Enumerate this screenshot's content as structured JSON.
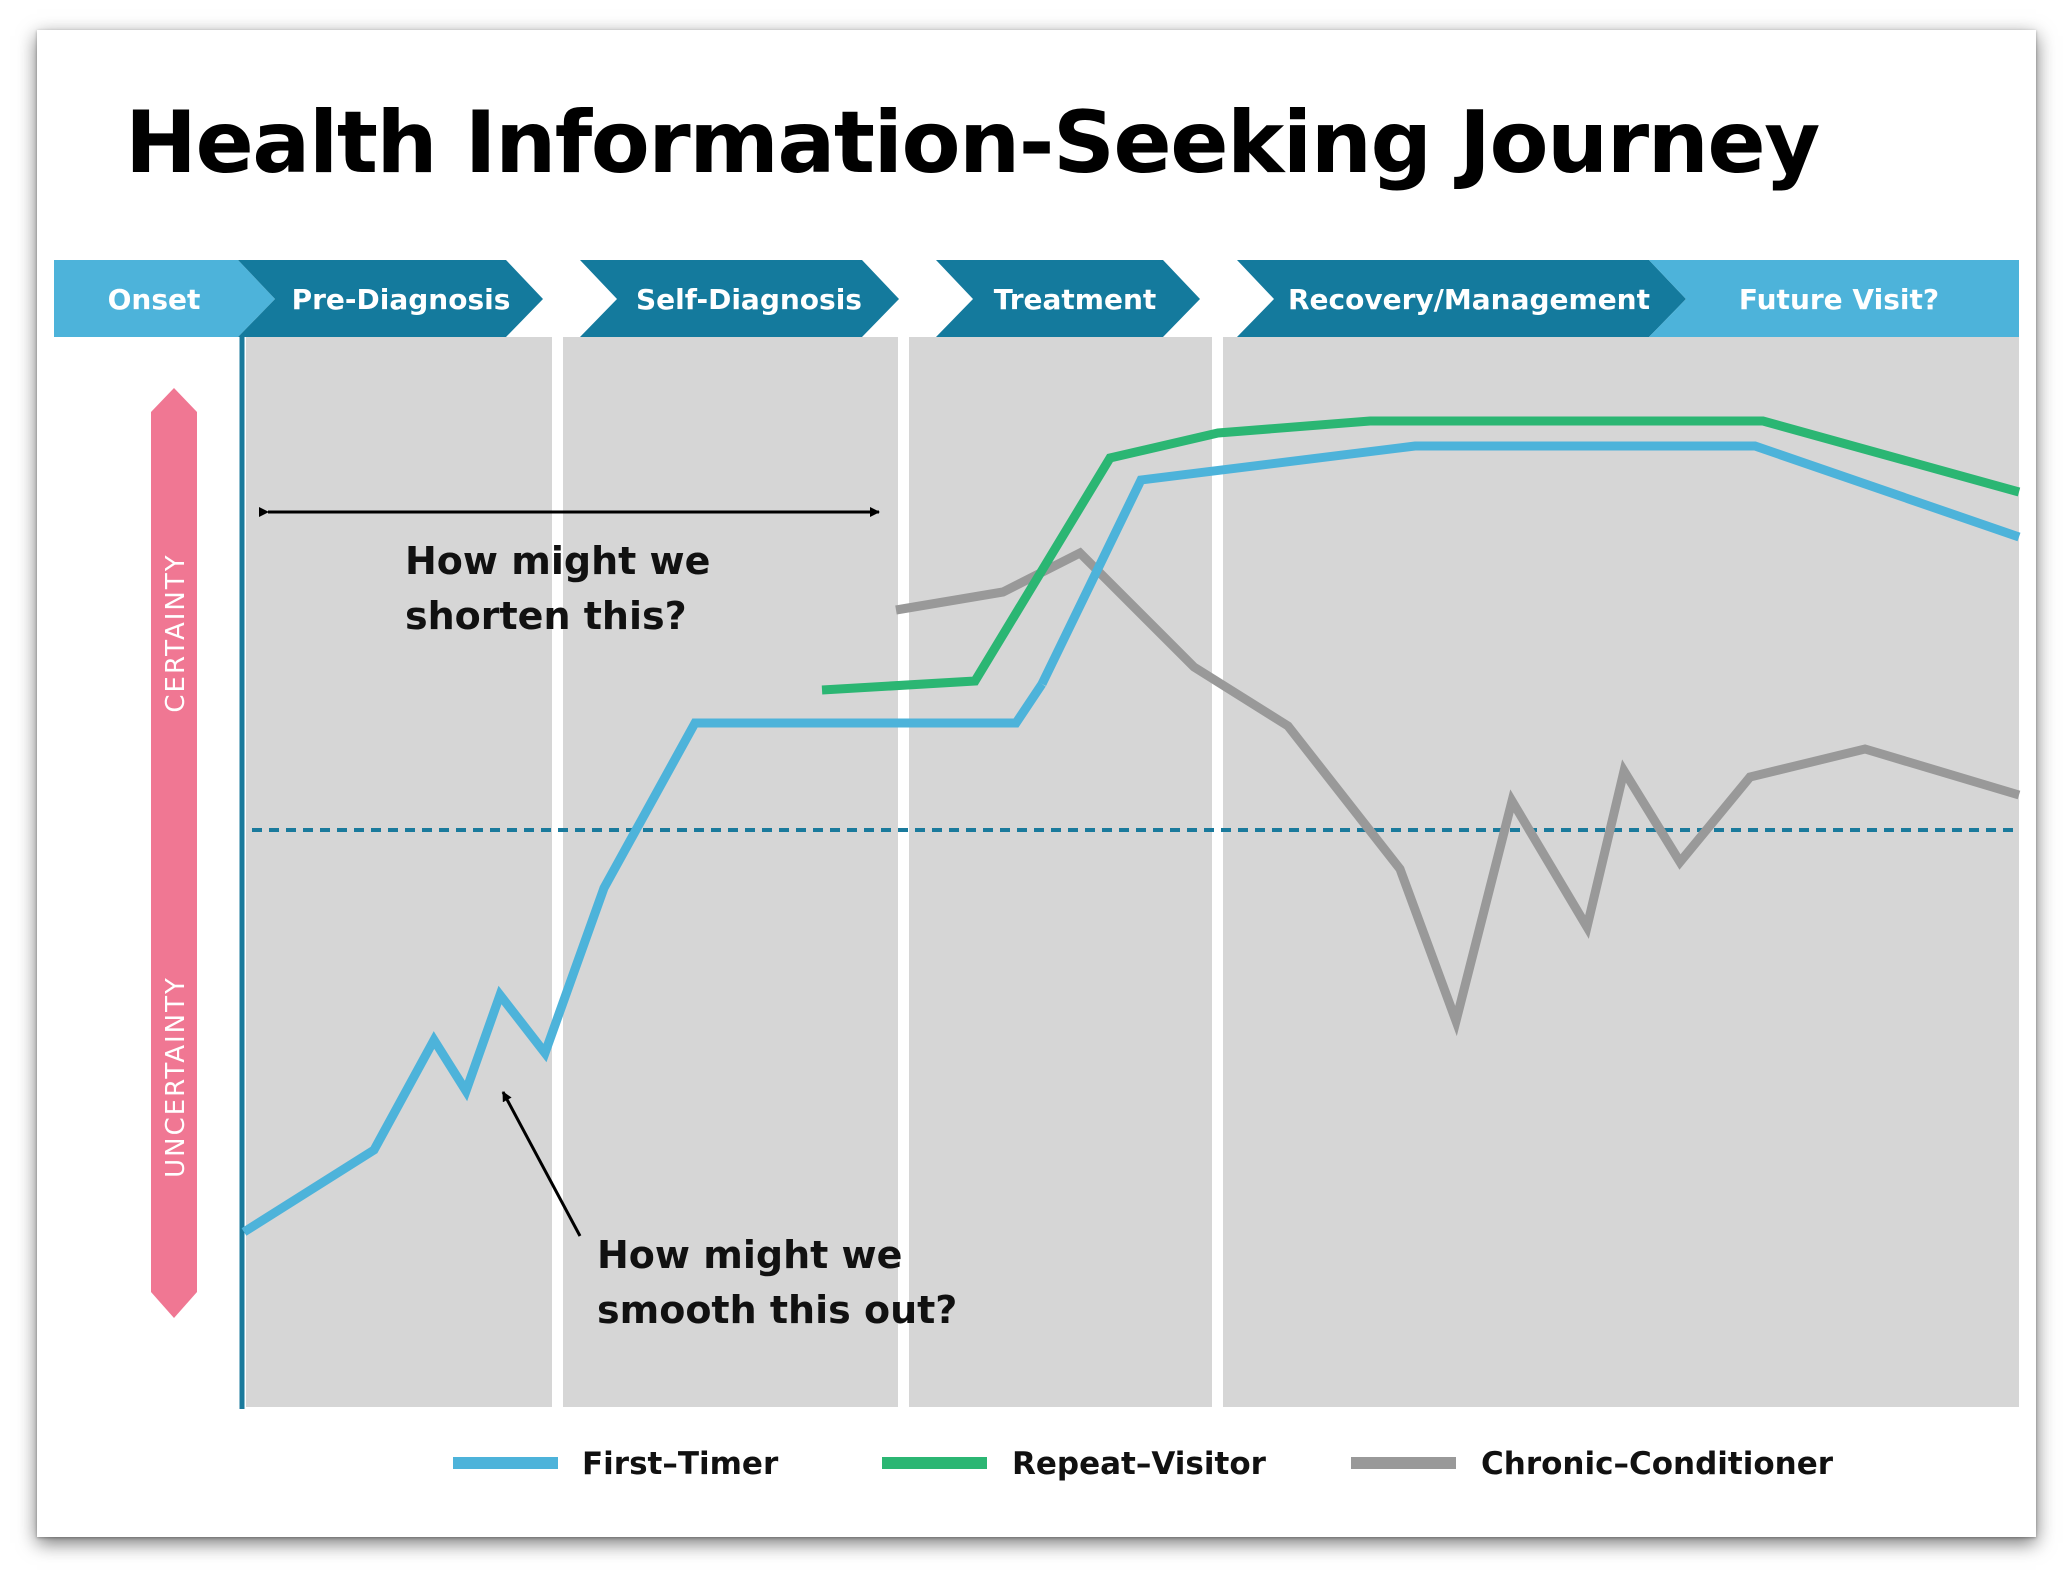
{
  "title": "Health Information-Seeking Journey",
  "stages": [
    {
      "label": "Onset",
      "color": "#4db3da"
    },
    {
      "label": "Pre-Diagnosis",
      "color": "#147a9d"
    },
    {
      "label": "Self-Diagnosis",
      "color": "#147a9d"
    },
    {
      "label": "Treatment",
      "color": "#147a9d"
    },
    {
      "label": "Recovery/Management",
      "color": "#147a9d"
    },
    {
      "label": "Future Visit?",
      "color": "#4db3da"
    }
  ],
  "axis": {
    "top_label": "CERTAINTY",
    "bottom_label": "UNCERTAINTY",
    "color": "#f07793"
  },
  "annotations": {
    "shorten": [
      "How might we",
      "shorten this?"
    ],
    "smooth": [
      "How might we",
      "smooth this out?"
    ]
  },
  "series": [
    {
      "name": "First–Timer",
      "color": "#4db3da"
    },
    {
      "name": "Repeat–Visitor",
      "color": "#2bb673"
    },
    {
      "name": "Chronic–Conditioner",
      "color": "#999999"
    }
  ],
  "colors": {
    "panel": "#d6d6d6",
    "baseline": "#1a7a9c",
    "threshold": "#1a7a9c"
  }
}
